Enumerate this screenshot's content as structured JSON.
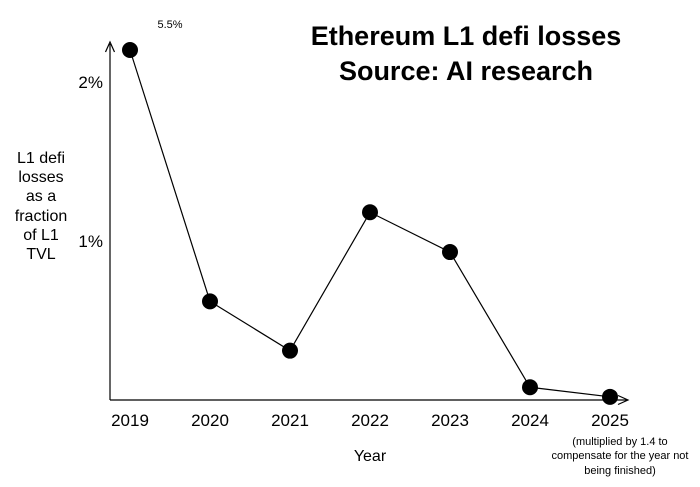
{
  "chart_data": {
    "type": "line",
    "title_lines": [
      "Ethereum L1 defi losses",
      "Source: AI research"
    ],
    "xlabel": "Year",
    "ylabel_lines": [
      "L1 defi",
      "losses",
      "as a",
      "fraction",
      "of L1",
      "TVL"
    ],
    "x": [
      "2019",
      "2020",
      "2021",
      "2022",
      "2023",
      "2024",
      "2025"
    ],
    "values": [
      2.2,
      0.62,
      0.31,
      1.18,
      0.93,
      0.08,
      0.02
    ],
    "point_label": "5.5%",
    "yticks": [
      {
        "value": 1,
        "label": "1%"
      },
      {
        "value": 2,
        "label": "2%"
      }
    ],
    "footnote_lines": [
      "(multiplied by 1.4 to",
      "compensate for the year not",
      "being finished)"
    ],
    "ylim": [
      0,
      2.2
    ],
    "grid": false,
    "colors": {
      "line": "#000000",
      "marker": "#000000"
    }
  }
}
